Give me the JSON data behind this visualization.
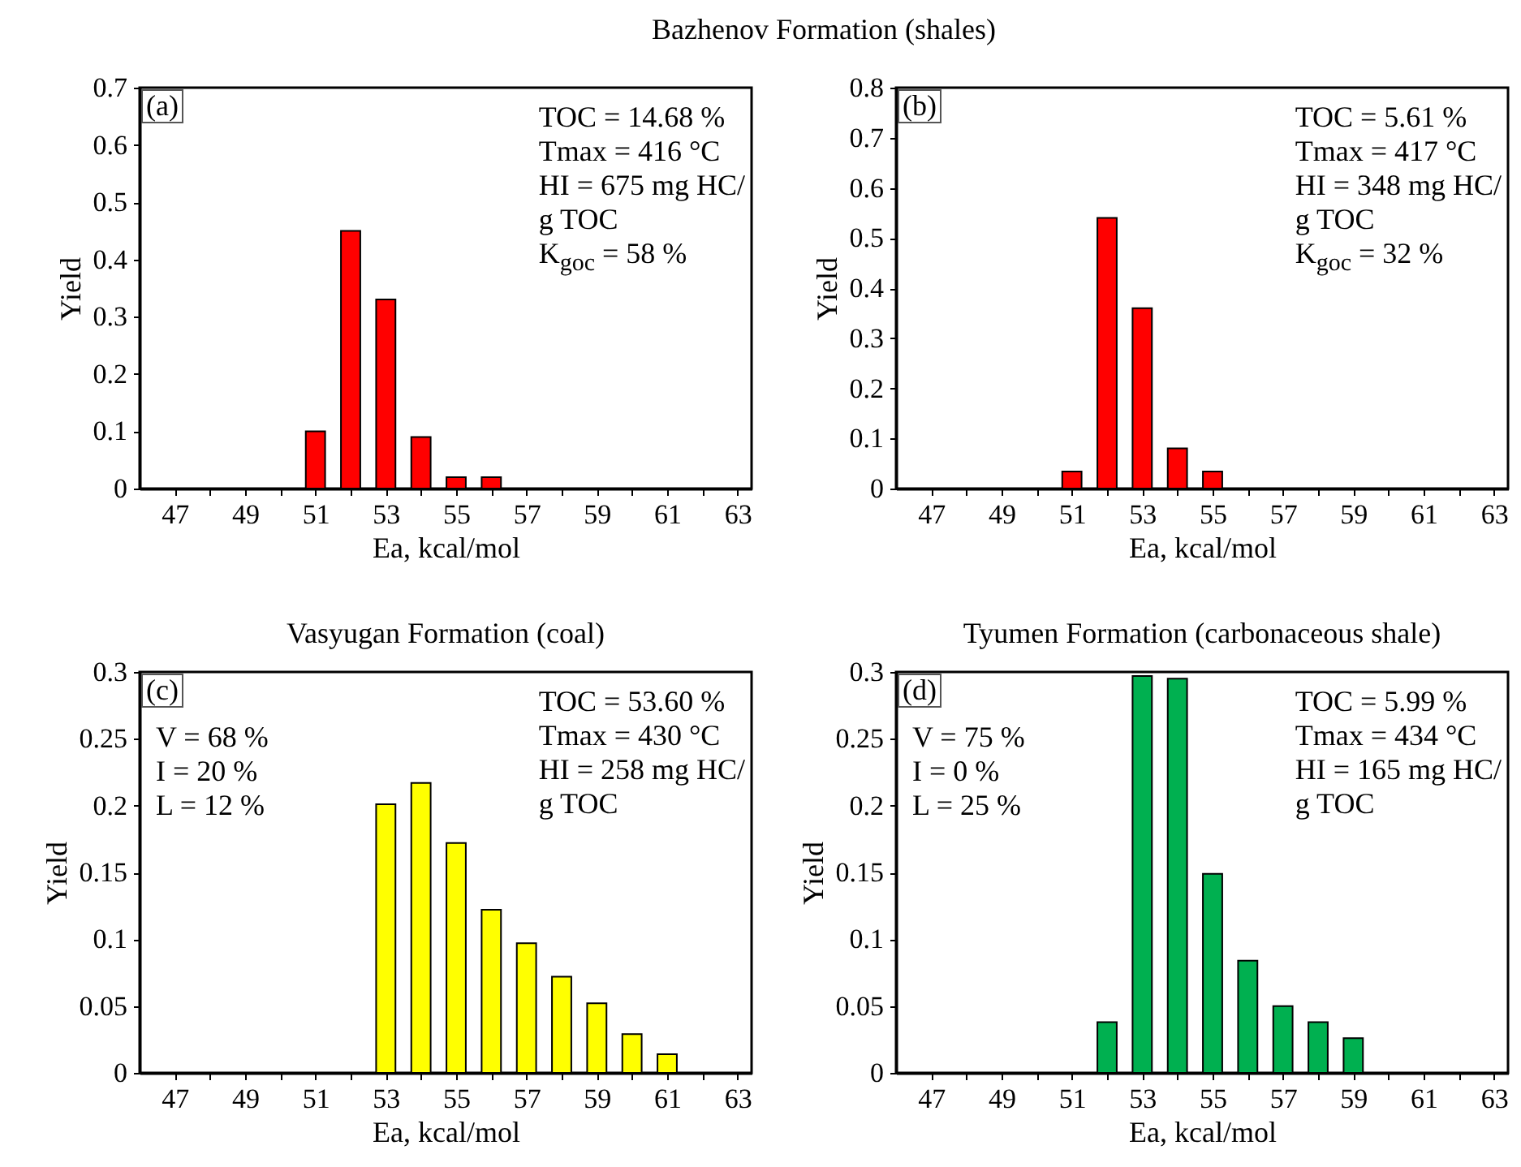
{
  "chart_data": [
    {
      "type": "bar",
      "title": "Bazhenov Formation (shales)",
      "xlabel": "Ea, kcal/mol",
      "ylabel": "Yield",
      "annotations": [
        "(a)",
        "TOC = 14.68 %\nTmax = 416 °C\nHI = 675 mg HC/\ng TOC\nK$_{goc}$ = 58 %"
      ],
      "x": [
        51,
        52,
        53,
        54,
        55,
        56
      ],
      "series": [
        {
          "color": "#ff0000",
          "values": [
            0.1,
            0.45,
            0.33,
            0.09,
            0.02,
            0.02
          ]
        }
      ],
      "xlim": [
        46,
        63.4
      ],
      "xticks": [
        47,
        {
          "value": 48,
          "label": null
        },
        49,
        {
          "value": 50,
          "label": null
        },
        51,
        {
          "value": 52,
          "label": null
        },
        53,
        {
          "value": 54,
          "label": null
        },
        55,
        {
          "value": 56,
          "label": null
        },
        57,
        {
          "value": 58,
          "label": null
        },
        59,
        {
          "value": 60,
          "label": null
        },
        61,
        {
          "value": 62,
          "label": null
        },
        63
      ],
      "ylim": [
        0,
        0.7
      ],
      "yticks": [
        0,
        0.1,
        0.2,
        0.3,
        0.4,
        0.5,
        0.6,
        0.7
      ],
      "grid": false
    },
    {
      "type": "bar",
      "xlabel": "Ea, kcal/mol",
      "ylabel": "Yield",
      "annotations": [
        "(b)",
        "TOC = 5.61 %\nTmax = 417 °C\nHI = 348 mg HC/\ng TOC\nK$_{goc}$ = 32 %"
      ],
      "x": [
        51,
        52,
        53,
        54,
        55
      ],
      "series": [
        {
          "color": "#ff0000",
          "values": [
            0.034,
            0.54,
            0.36,
            0.08,
            0.034
          ]
        }
      ],
      "xlim": [
        46,
        63.4
      ],
      "xticks": [
        47,
        {
          "value": 48,
          "label": null
        },
        49,
        {
          "value": 50,
          "label": null
        },
        51,
        {
          "value": 52,
          "label": null
        },
        53,
        {
          "value": 54,
          "label": null
        },
        55,
        {
          "value": 56,
          "label": null
        },
        57,
        {
          "value": 58,
          "label": null
        },
        59,
        {
          "value": 60,
          "label": null
        },
        61,
        {
          "value": 62,
          "label": null
        },
        63
      ],
      "ylim": [
        0,
        0.8
      ],
      "yticks": [
        0,
        0.1,
        0.2,
        0.3,
        0.4,
        0.5,
        0.6,
        0.7,
        0.8
      ],
      "grid": false
    },
    {
      "type": "bar",
      "title": "Vasyugan Formation (coal)",
      "xlabel": "Ea, kcal/mol",
      "ylabel": "Yield",
      "annotations": [
        "(c)",
        "TOC = 53.60 %\nTmax = 430 °C\nHI = 258 mg HC/\ng TOC",
        "V = 68 %\nI = 20 %\nL = 12 %"
      ],
      "x": [
        53,
        54,
        55,
        56,
        57,
        58,
        59,
        60,
        61
      ],
      "series": [
        {
          "color": "#ffff00",
          "values": [
            0.201,
            0.217,
            0.172,
            0.122,
            0.097,
            0.072,
            0.052,
            0.029,
            0.014
          ]
        }
      ],
      "xlim": [
        46,
        63.4
      ],
      "xticks": [
        47,
        {
          "value": 48,
          "label": null
        },
        49,
        {
          "value": 50,
          "label": null
        },
        51,
        {
          "value": 52,
          "label": null
        },
        53,
        {
          "value": 54,
          "label": null
        },
        55,
        {
          "value": 56,
          "label": null
        },
        57,
        {
          "value": 58,
          "label": null
        },
        59,
        {
          "value": 60,
          "label": null
        },
        61,
        {
          "value": 62,
          "label": null
        },
        63
      ],
      "ylim": [
        0,
        0.3
      ],
      "yticks": [
        0,
        0.05,
        0.1,
        0.15,
        0.2,
        0.25,
        0.3
      ],
      "grid": false
    },
    {
      "type": "bar",
      "title": "Tyumen Formation (carbonaceous shale)",
      "xlabel": "Ea, kcal/mol",
      "ylabel": "Yield",
      "annotations": [
        "(d)",
        "TOC = 5.99 %\nTmax = 434 °C\nHI = 165 mg HC/\ng TOC",
        "V = 75 %\nI = 0 %\nL = 25 %"
      ],
      "x": [
        52,
        53,
        54,
        55,
        56,
        57,
        58,
        59
      ],
      "series": [
        {
          "color": "#00b050",
          "values": [
            0.038,
            0.297,
            0.295,
            0.149,
            0.084,
            0.05,
            0.038,
            0.026
          ]
        }
      ],
      "xlim": [
        46,
        63.4
      ],
      "xticks": [
        47,
        {
          "value": 48,
          "label": null
        },
        49,
        {
          "value": 50,
          "label": null
        },
        51,
        {
          "value": 52,
          "label": null
        },
        53,
        {
          "value": 54,
          "label": null
        },
        55,
        {
          "value": 56,
          "label": null
        },
        57,
        {
          "value": 58,
          "label": null
        },
        59,
        {
          "value": 60,
          "label": null
        },
        61,
        {
          "value": 62,
          "label": null
        },
        63
      ],
      "ylim": [
        0,
        0.3
      ],
      "yticks": [
        0,
        0.05,
        0.1,
        0.15,
        0.2,
        0.25,
        0.3
      ],
      "grid": false
    }
  ]
}
